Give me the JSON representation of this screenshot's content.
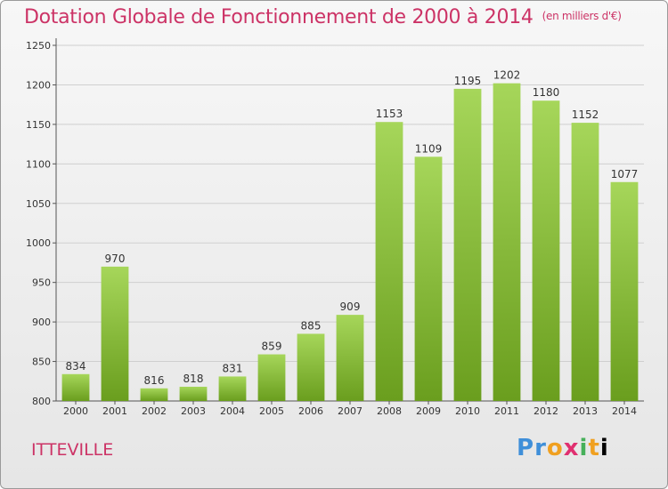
{
  "title": "Dotation Globale de Fonctionnement de 2000 à 2014",
  "unit": "(en milliers d'€)",
  "commune": "ITTEVILLE",
  "logo": "Proxiti",
  "colors": {
    "title": "#cc3366",
    "bar_light": "#a6d65a",
    "bar_dark": "#6a9e1e"
  },
  "chart_data": {
    "type": "bar",
    "title": "Dotation Globale de Fonctionnement de 2000 à 2014",
    "categories": [
      "2000",
      "2001",
      "2002",
      "2003",
      "2004",
      "2005",
      "2006",
      "2007",
      "2008",
      "2009",
      "2010",
      "2011",
      "2012",
      "2013",
      "2014"
    ],
    "values": [
      834,
      970,
      816,
      818,
      831,
      859,
      885,
      909,
      1153,
      1109,
      1195,
      1202,
      1180,
      1152,
      1077
    ],
    "ylim": [
      800,
      1250
    ],
    "yticks": [
      800,
      850,
      900,
      950,
      1000,
      1050,
      1100,
      1150,
      1200,
      1250
    ],
    "grid": true
  }
}
